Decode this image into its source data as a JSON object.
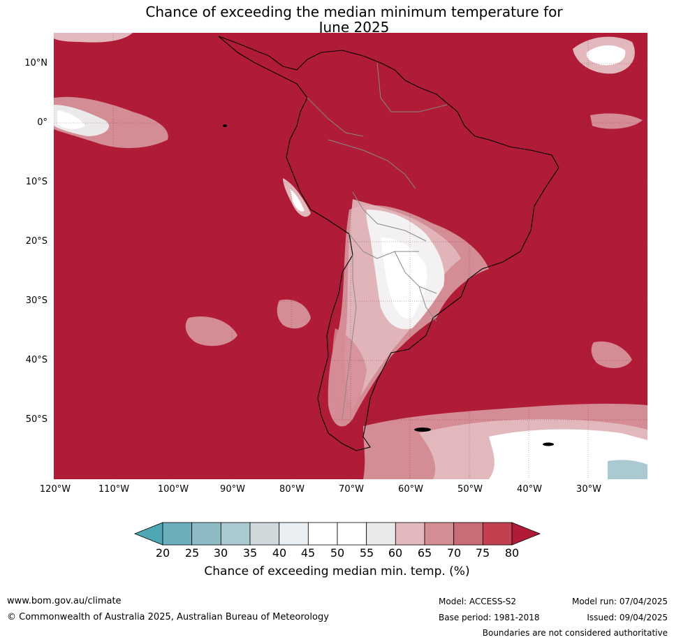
{
  "title": {
    "line1": "Chance of exceeding the median minimum temperature for",
    "line2": "June 2025"
  },
  "map": {
    "lat_labels": [
      "10°N",
      "0°",
      "10°S",
      "20°S",
      "30°S",
      "40°S",
      "50°S"
    ],
    "lon_labels": [
      "120°W",
      "110°W",
      "100°W",
      "90°W",
      "80°W",
      "70°W",
      "60°W",
      "50°W",
      "40°W",
      "30°W"
    ],
    "extent": {
      "lon_min": -120,
      "lon_max": -20,
      "lat_min": -60,
      "lat_max": 15
    },
    "dominant_category": "80+",
    "colors": {
      "high": "#b01c38",
      "water": "#b01c38"
    }
  },
  "colorbar": {
    "ticks": [
      "20",
      "25",
      "30",
      "35",
      "40",
      "45",
      "50",
      "55",
      "60",
      "65",
      "70",
      "75",
      "80"
    ],
    "colors": [
      "#4fa6b5",
      "#6bafbd",
      "#8ebac6",
      "#aac9d0",
      "#d1d8db",
      "#e9eff2",
      "#ffffff",
      "#ffffff",
      "#ebe9ea",
      "#e2b8bd",
      "#d48c95",
      "#c86c78",
      "#c24150",
      "#b01c38"
    ],
    "label": "Chance of exceeding median min. temp. (%)"
  },
  "footer": {
    "website": "www.bom.gov.au/climate",
    "copyright": "© Commonwealth of Australia 2025, Australian Bureau of Meteorology",
    "model": "Model: ACCESS-S2",
    "base_period": "Base period: 1981-2018",
    "model_run": "Model run: 07/04/2025",
    "issued": "Issued: 09/04/2025",
    "disclaimer": "Boundaries are not considered authoritative"
  }
}
